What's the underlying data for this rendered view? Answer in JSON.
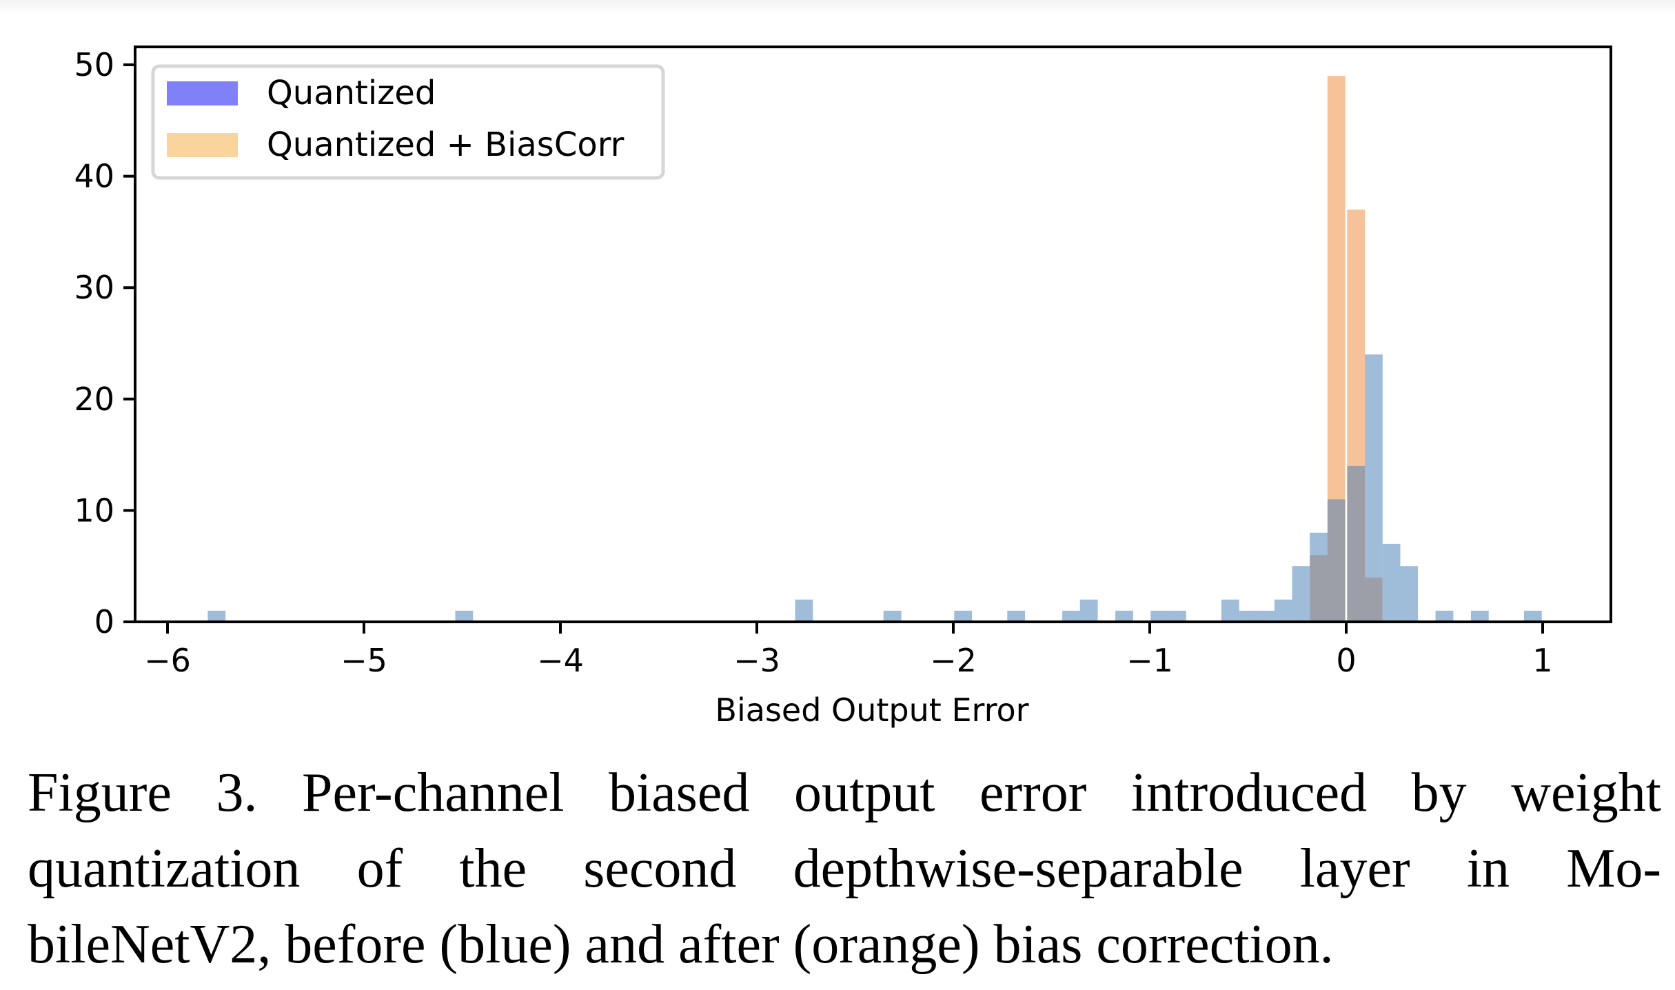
{
  "chart_data": {
    "type": "bar",
    "subtype": "histogram-overlay",
    "title": "",
    "xlabel": "Biased Output Error",
    "ylabel": "",
    "xlim": [
      -6.15,
      1.3
    ],
    "ylim": [
      0,
      51.5
    ],
    "xticks": [
      -6,
      -5,
      -4,
      -3,
      -2,
      -1,
      0,
      1
    ],
    "xtick_labels": [
      "−6",
      "−5",
      "−4",
      "−3",
      "−2",
      "−1",
      "0",
      "1"
    ],
    "yticks": [
      0,
      10,
      20,
      30,
      40,
      50
    ],
    "ytick_labels": [
      "0",
      "10",
      "20",
      "30",
      "40",
      "50"
    ],
    "grid": false,
    "legend_position": "upper left",
    "bin_width": 0.0906,
    "series": [
      {
        "name": "Quantized",
        "legend_color": "#8080f8",
        "bar_color": "#9fbcd9",
        "bin_centers": [
          -5.75,
          -4.49,
          -2.76,
          -2.31,
          -1.95,
          -1.68,
          -1.4,
          -1.31,
          -1.13,
          -0.95,
          -0.86,
          -0.59,
          -0.5,
          -0.41,
          -0.32,
          -0.23,
          -0.14,
          -0.05,
          0.05,
          0.14,
          0.23,
          0.32,
          0.5,
          0.68,
          0.95
        ],
        "values": [
          1,
          1,
          2,
          1,
          1,
          1,
          1,
          2,
          1,
          1,
          1,
          2,
          1,
          1,
          2,
          5,
          8,
          11,
          14,
          24,
          7,
          5,
          1,
          1,
          1
        ]
      },
      {
        "name": "Quantized + BiasCorr",
        "legend_color": "#f9d49c",
        "bar_color": "#f6c29a",
        "bin_centers": [
          -0.14,
          -0.05,
          0.05,
          0.14
        ],
        "values": [
          6,
          49,
          37,
          4
        ]
      }
    ],
    "overlap_color": "#9c9ea8"
  },
  "legend": {
    "items": [
      {
        "label": "Quantized",
        "color": "#8080f8"
      },
      {
        "label": "Quantized + BiasCorr",
        "color": "#f9d49c"
      }
    ]
  },
  "caption": {
    "text": "Figure 3. Per-channel biased output error introduced by weight quantization of the second depthwise-separable layer in MobileNetV2, before (blue) and after (orange) bias correction.",
    "lines": [
      "Figure 3. Per-channel biased output error introduced by weight",
      "quantization of the second depthwise-separable layer in Mo-",
      "bileNetV2, before (blue) and after (orange) bias correction."
    ]
  }
}
